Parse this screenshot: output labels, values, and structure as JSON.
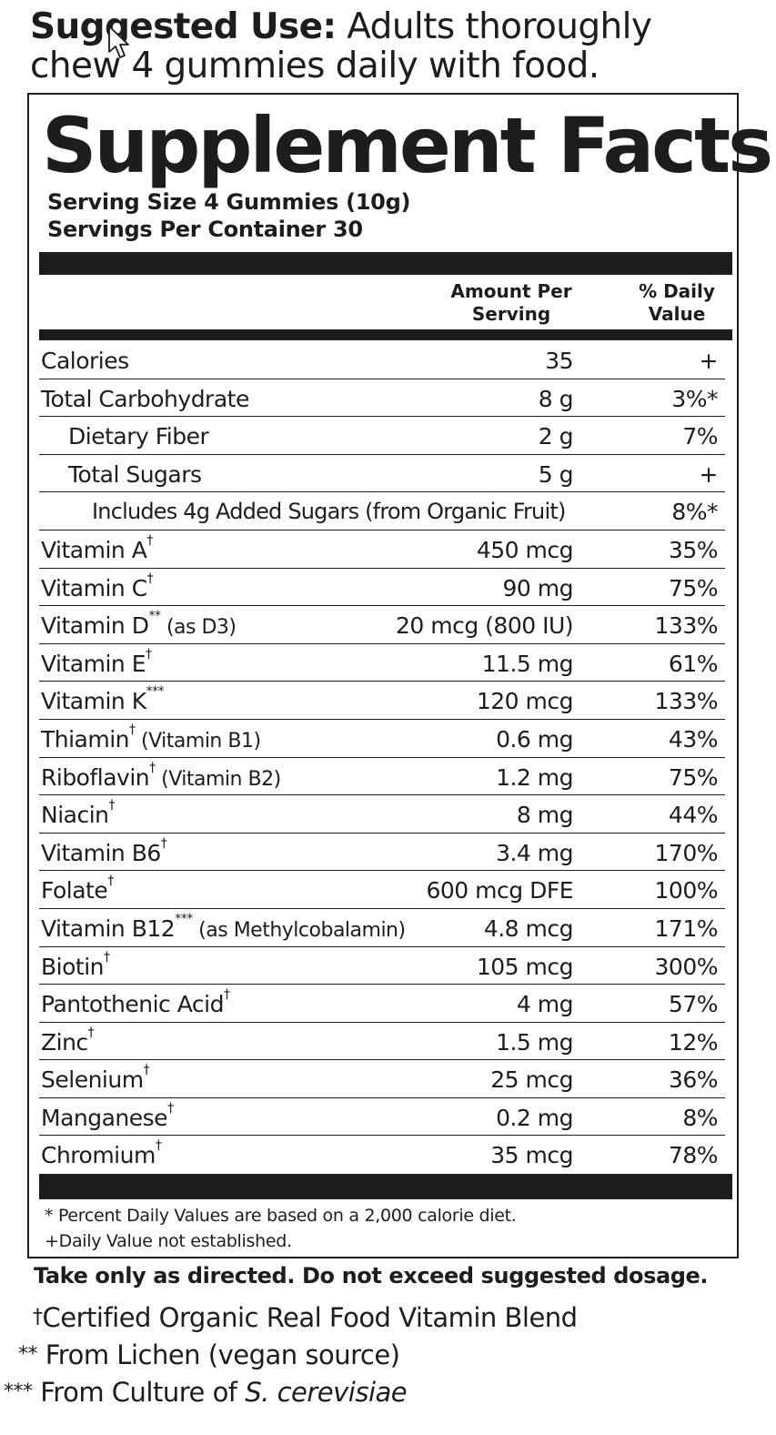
{
  "suggested_use": {
    "label": "Suggested Use:",
    "text": " Adults thoroughly chew 4 gummies daily with food."
  },
  "panel": {
    "title": "Supplement Facts",
    "serving_size": "Serving Size 4 Gummies (10g)",
    "servings_per_container": "Servings Per Container 30",
    "col_amount_line1": "Amount Per",
    "col_amount_line2": "Serving",
    "col_dv_line1": "% Daily",
    "col_dv_line2": "Value",
    "rows": [
      {
        "name": "Calories",
        "mark": "",
        "note": "",
        "amount": "35",
        "dv": "+"
      },
      {
        "name": "Total Carbohydrate",
        "mark": "",
        "note": "",
        "amount": "8 g",
        "dv": "3%*"
      },
      {
        "name": "Dietary Fiber",
        "mark": "",
        "note": "",
        "amount": "2 g",
        "dv": "7%"
      },
      {
        "name": "Total Sugars",
        "mark": "",
        "note": "",
        "amount": "5 g",
        "dv": "+"
      },
      {
        "name": "Includes 4g Added Sugars (from Organic Fruit)",
        "mark": "",
        "note": "",
        "amount": "",
        "dv": "8%*"
      },
      {
        "name": "Vitamin A",
        "mark": "†",
        "note": "",
        "amount": "450 mcg",
        "dv": "35%"
      },
      {
        "name": "Vitamin C",
        "mark": "†",
        "note": "",
        "amount": "90 mg",
        "dv": "75%"
      },
      {
        "name": "Vitamin D",
        "mark": "**",
        "note": " (as D3)",
        "amount": "20 mcg (800 IU)",
        "dv": "133%"
      },
      {
        "name": "Vitamin E",
        "mark": "†",
        "note": "",
        "amount": "11.5 mg",
        "dv": "61%"
      },
      {
        "name": "Vitamin K",
        "mark": "***",
        "note": "",
        "amount": "120 mcg",
        "dv": "133%"
      },
      {
        "name": "Thiamin",
        "mark": "†",
        "note": " (Vitamin B1)",
        "amount": "0.6 mg",
        "dv": "43%"
      },
      {
        "name": "Riboflavin",
        "mark": "†",
        "note": " (Vitamin B2)",
        "amount": "1.2 mg",
        "dv": "75%"
      },
      {
        "name": "Niacin",
        "mark": "†",
        "note": "",
        "amount": "8 mg",
        "dv": "44%"
      },
      {
        "name": "Vitamin B6",
        "mark": "†",
        "note": "",
        "amount": "3.4 mg",
        "dv": "170%"
      },
      {
        "name": "Folate",
        "mark": "†",
        "note": "",
        "amount": "600 mcg DFE",
        "dv": "100%"
      },
      {
        "name": "Vitamin B12",
        "mark": "***",
        "note": " (as Methylcobalamin)",
        "amount": "4.8 mcg",
        "dv": "171%"
      },
      {
        "name": "Biotin",
        "mark": "†",
        "note": "",
        "amount": "105 mcg",
        "dv": "300%"
      },
      {
        "name": "Pantothenic Acid",
        "mark": "†",
        "note": "",
        "amount": "4 mg",
        "dv": "57%"
      },
      {
        "name": "Zinc",
        "mark": "†",
        "note": "",
        "amount": "1.5 mg",
        "dv": "12%"
      },
      {
        "name": "Selenium",
        "mark": "†",
        "note": "",
        "amount": "25 mcg",
        "dv": "36%"
      },
      {
        "name": "Manganese",
        "mark": "†",
        "note": "",
        "amount": "0.2 mg",
        "dv": "8%"
      },
      {
        "name": "Chromium",
        "mark": "†",
        "note": "",
        "amount": "35 mcg",
        "dv": "78%"
      }
    ],
    "footnote_dv": "* Percent Daily Values are based on a 2,000 calorie diet.",
    "footnote_plus": "+Daily Value not established."
  },
  "warning": "Take only as directed. Do not exceed suggested dosage.",
  "footnotes": {
    "organic_mark": "†",
    "organic_text": "Certified Organic Real Food Vitamin Blend",
    "lichen_mark": "**",
    "lichen_text": " From Lichen (vegan source)",
    "culture_mark": "***",
    "culture_text": " From Culture of ",
    "culture_species": "S. cerevisiae"
  }
}
